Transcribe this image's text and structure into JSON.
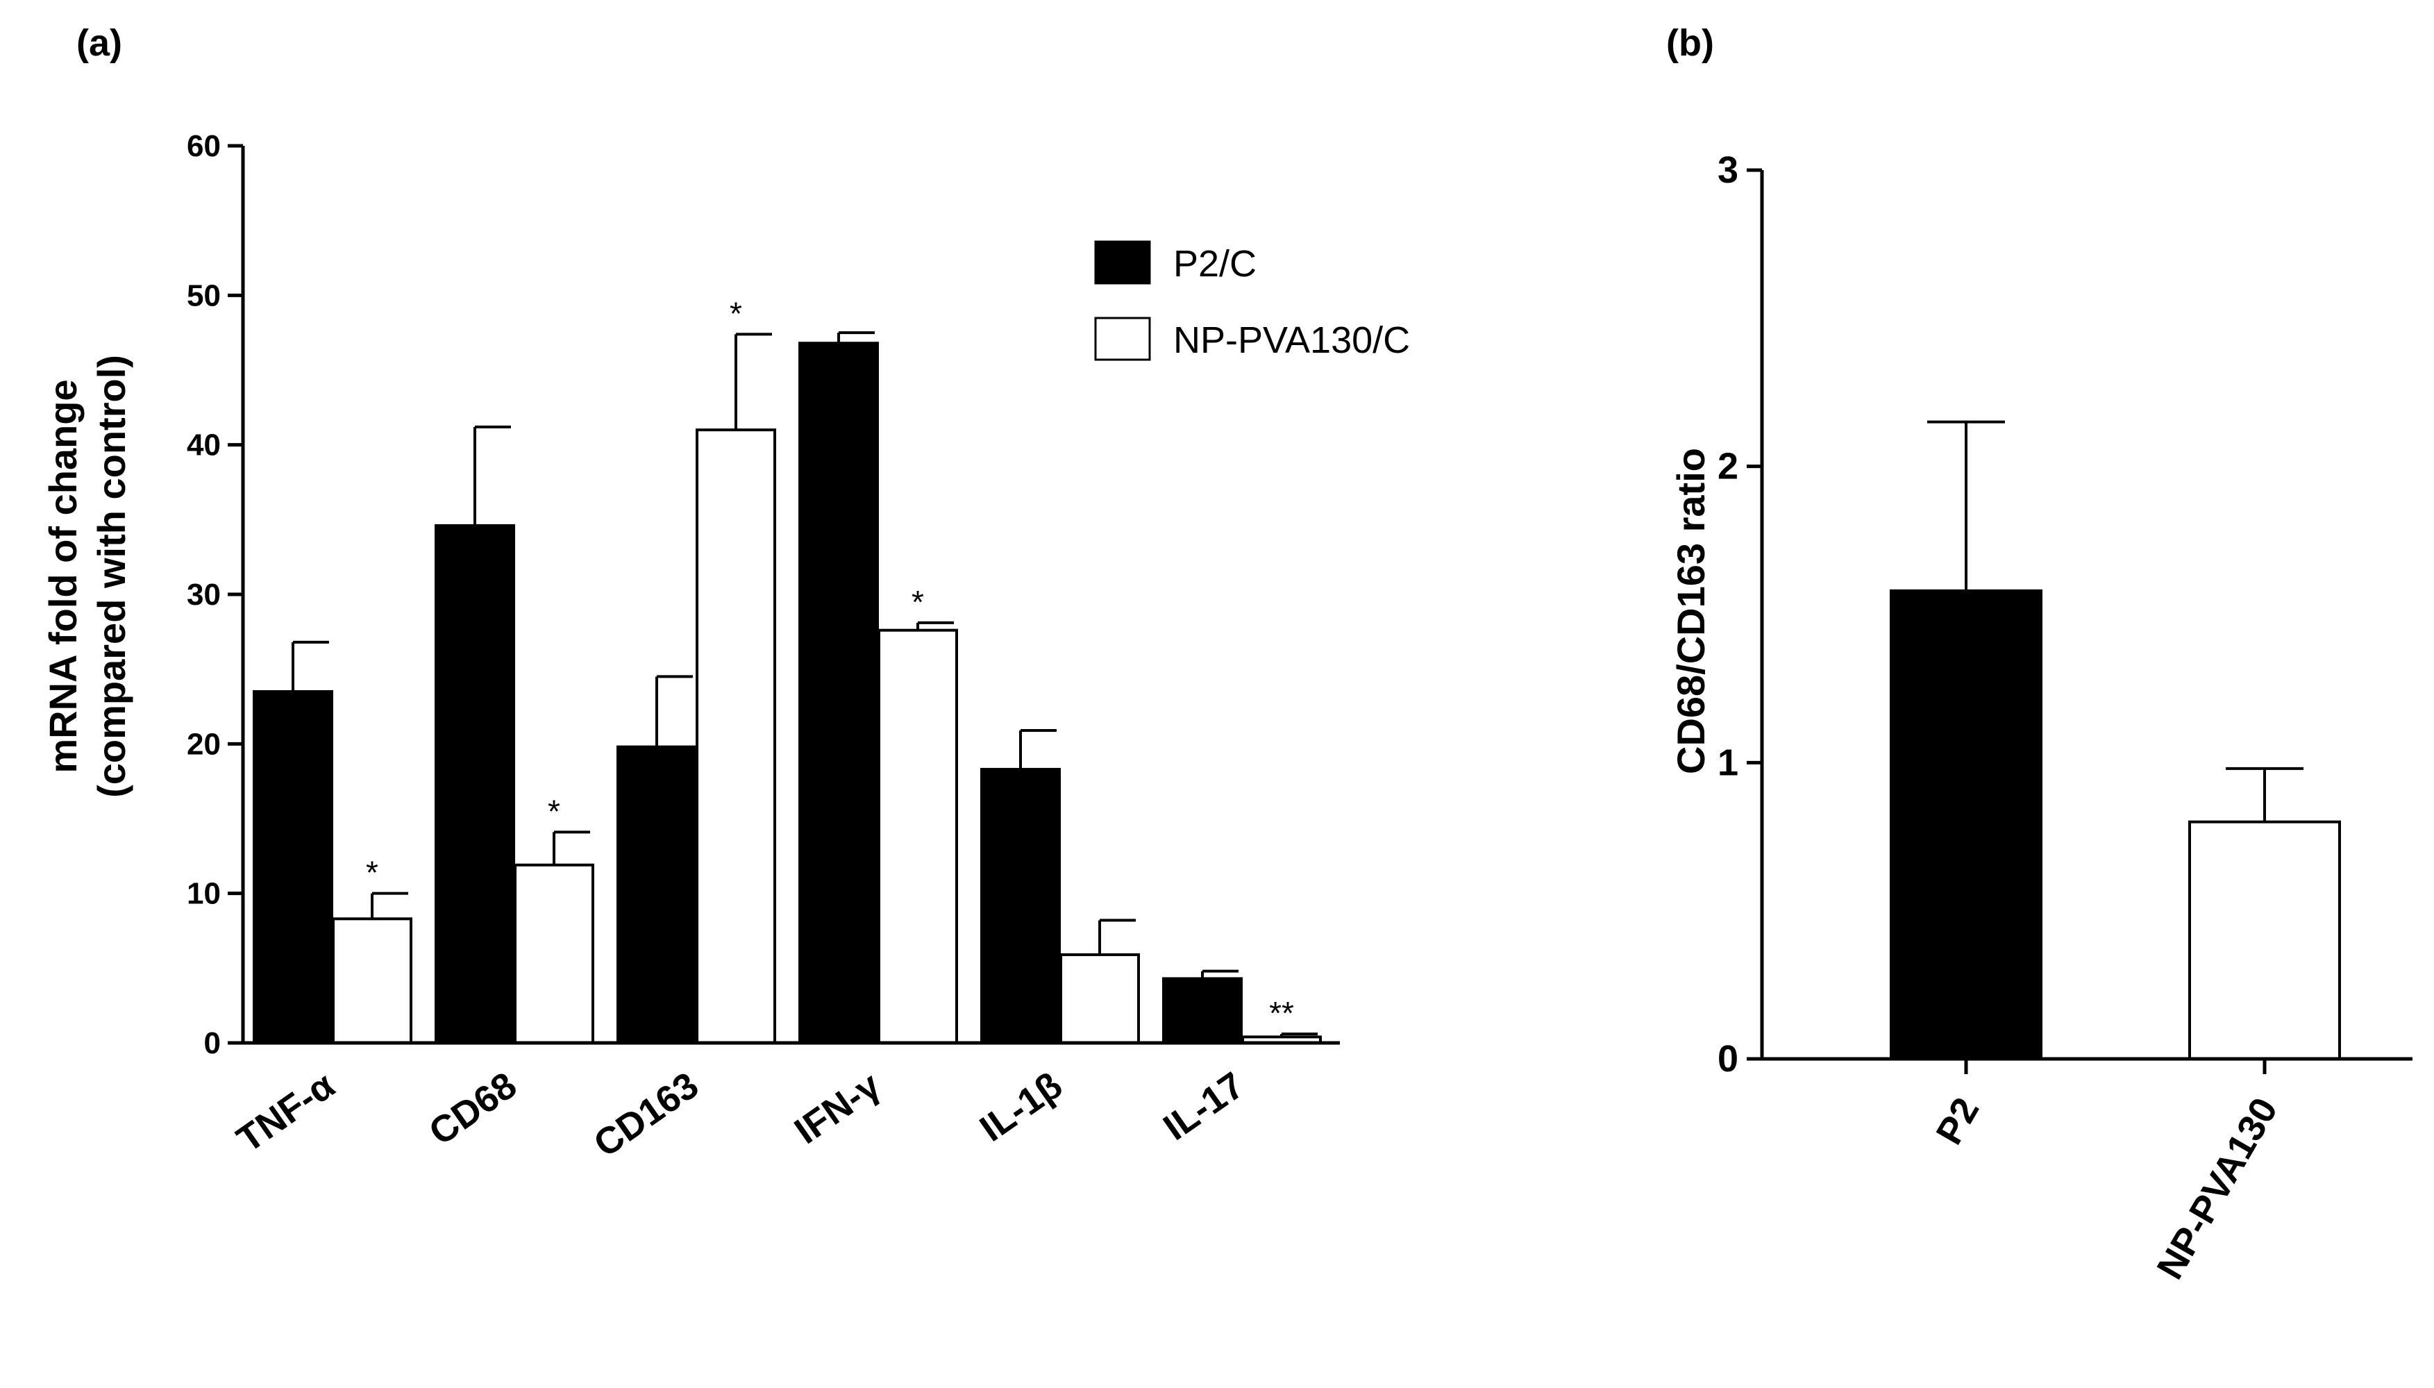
{
  "chart_data": [
    {
      "panel": "(a)",
      "type": "bar",
      "categories": [
        "TNF-α",
        "CD68",
        "CD163",
        "IFN-γ",
        "IL-1β",
        "IL-17"
      ],
      "series": [
        {
          "name": "P2/C",
          "color": "#000000",
          "values": [
            23.5,
            34.6,
            19.8,
            46.8,
            18.3,
            4.3
          ],
          "errors": [
            3.3,
            6.6,
            4.7,
            0.7,
            2.6,
            0.5
          ],
          "significance": [
            "",
            "",
            "",
            "",
            "",
            ""
          ]
        },
        {
          "name": "NP-PVA130/C",
          "color": "#ffffff",
          "values": [
            8.3,
            11.9,
            41.0,
            27.6,
            5.9,
            0.4
          ],
          "errors": [
            1.7,
            2.2,
            6.4,
            0.5,
            2.3,
            0.2
          ],
          "significance": [
            "*",
            "*",
            "*",
            "*",
            "",
            "**"
          ]
        }
      ],
      "ylabel_line1": "mRNA fold of change",
      "ylabel_line2": "(compared with control)",
      "xlabel": "",
      "ylim": [
        0,
        60
      ],
      "yticks": [
        "0",
        "10",
        "20",
        "30",
        "40",
        "50",
        "60"
      ],
      "legend": "top-right",
      "grid": false
    },
    {
      "panel": "(b)",
      "type": "bar",
      "categories": [
        "P2",
        "NP-PVA130"
      ],
      "values": [
        1.58,
        0.8
      ],
      "errors": [
        0.57,
        0.18
      ],
      "colors": [
        "#000000",
        "#ffffff"
      ],
      "ylabel": "CD68/CD163 ratio",
      "xlabel": "",
      "ylim": [
        0,
        3
      ],
      "yticks": [
        "0",
        "1",
        "2",
        "3"
      ],
      "grid": false
    }
  ]
}
